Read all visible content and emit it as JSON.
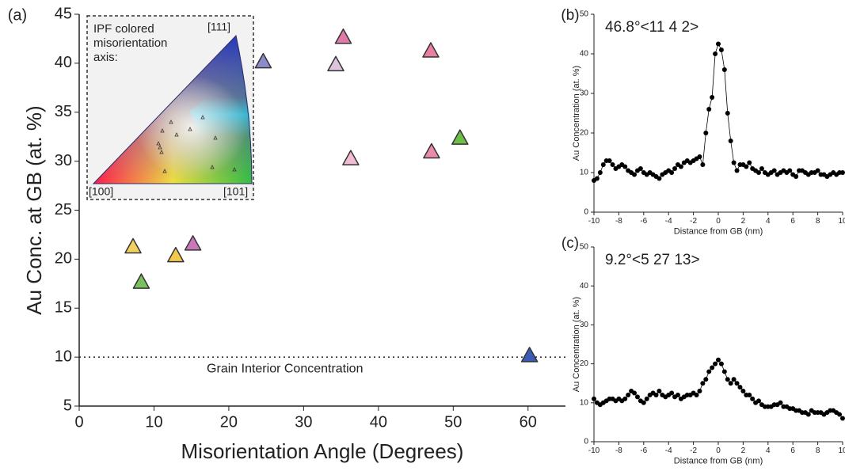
{
  "chart_data": [
    {
      "type": "scatter",
      "panel_label": "(a)",
      "xlabel": "Misorientation Angle (Degrees)",
      "ylabel": "Au Conc. at GB (at. %)",
      "x": [
        7.2,
        8.3,
        12.9,
        15.2,
        24.6,
        34.3,
        35.3,
        36.3,
        47.0,
        47.1,
        50.9,
        60.2
      ],
      "values": [
        21.2,
        17.6,
        20.3,
        21.5,
        40.1,
        39.8,
        42.6,
        30.2,
        41.2,
        30.9,
        32.3,
        10.1
      ],
      "colors": [
        "#f2d060",
        "#78c060",
        "#f2c850",
        "#c877b8",
        "#8c8ccc",
        "#dcc4dc",
        "#e07aa8",
        "#f2bcd4",
        "#e8809e",
        "#ea8aac",
        "#6cbf48",
        "#3a5cb4"
      ],
      "xlim": [
        0,
        65
      ],
      "xticks": [
        0,
        10,
        20,
        30,
        40,
        50,
        60
      ],
      "ylim": [
        5,
        45
      ],
      "yticks": [
        5,
        10,
        15,
        20,
        25,
        30,
        35,
        40,
        45
      ],
      "reference_line": {
        "value": 10,
        "label": "Grain Interior Concentration"
      },
      "inset": {
        "title": "IPF colored misorientation axis:",
        "corners": [
          "[111]",
          "[100]",
          "[101]"
        ]
      }
    },
    {
      "type": "line",
      "panel_label": "(b)",
      "annotation": "46.8°<11 4 2>",
      "xlabel": "Distance from GB (nm)",
      "ylabel": "Au Concentration (at. %)",
      "color": "#000000",
      "x": [
        -10,
        -9.75,
        -9.5,
        -9.25,
        -9,
        -8.75,
        -8.5,
        -8.25,
        -8,
        -7.75,
        -7.5,
        -7.25,
        -7,
        -6.75,
        -6.5,
        -6.25,
        -6,
        -5.75,
        -5.5,
        -5.25,
        -5,
        -4.75,
        -4.5,
        -4.25,
        -4,
        -3.75,
        -3.5,
        -3.25,
        -3,
        -2.75,
        -2.5,
        -2.25,
        -2,
        -1.75,
        -1.5,
        -1.25,
        -1,
        -0.75,
        -0.5,
        -0.25,
        0,
        0.25,
        0.5,
        0.75,
        1,
        1.25,
        1.5,
        1.75,
        2,
        2.25,
        2.5,
        2.75,
        3,
        3.25,
        3.5,
        3.75,
        4,
        4.25,
        4.5,
        4.75,
        5,
        5.25,
        5.5,
        5.75,
        6,
        6.25,
        6.5,
        6.75,
        7,
        7.25,
        7.5,
        7.75,
        8,
        8.25,
        8.5,
        8.75,
        9,
        9.25,
        9.5,
        9.75,
        10
      ],
      "values": [
        8,
        8.5,
        10,
        12,
        13,
        13,
        12,
        11,
        11.5,
        12,
        11.5,
        10.5,
        10,
        9.5,
        10.5,
        11,
        10,
        9.5,
        10,
        9.5,
        9,
        8.5,
        9.5,
        10,
        10.5,
        10,
        11,
        12,
        11.5,
        12.5,
        13,
        12.5,
        13,
        13.5,
        14,
        12,
        20,
        26,
        29,
        40,
        42.5,
        41,
        36,
        25,
        18,
        12.5,
        10.5,
        12,
        12,
        11.5,
        12.5,
        11,
        10.5,
        10,
        11,
        10,
        9.5,
        10,
        10.5,
        9.5,
        10,
        10.5,
        10,
        10.5,
        9.5,
        9,
        10.5,
        10.5,
        10,
        9.5,
        10,
        10,
        10.5,
        9.5,
        9.5,
        9,
        9.5,
        10,
        9.5,
        10,
        10
      ],
      "xlim": [
        -10,
        10
      ],
      "xticks": [
        -10,
        -8,
        -6,
        -4,
        -2,
        0,
        2,
        4,
        6,
        8,
        10
      ],
      "ylim": [
        0,
        50
      ],
      "yticks": [
        0,
        10,
        20,
        30,
        40,
        50
      ]
    },
    {
      "type": "line",
      "panel_label": "(c)",
      "annotation": "9.2°<5 27 13>",
      "xlabel": "Distance from GB (nm)",
      "ylabel": "Au Concentration (at. %)",
      "color": "#000000",
      "x": [
        -10,
        -9.75,
        -9.5,
        -9.25,
        -9,
        -8.75,
        -8.5,
        -8.25,
        -8,
        -7.75,
        -7.5,
        -7.25,
        -7,
        -6.75,
        -6.5,
        -6.25,
        -6,
        -5.75,
        -5.5,
        -5.25,
        -5,
        -4.75,
        -4.5,
        -4.25,
        -4,
        -3.75,
        -3.5,
        -3.25,
        -3,
        -2.75,
        -2.5,
        -2.25,
        -2,
        -1.75,
        -1.5,
        -1.25,
        -1,
        -0.75,
        -0.5,
        -0.25,
        0,
        0.25,
        0.5,
        0.75,
        1,
        1.25,
        1.5,
        1.75,
        2,
        2.25,
        2.5,
        2.75,
        3,
        3.25,
        3.5,
        3.75,
        4,
        4.25,
        4.5,
        4.75,
        5,
        5.25,
        5.5,
        5.75,
        6,
        6.25,
        6.5,
        6.75,
        7,
        7.25,
        7.5,
        7.75,
        8,
        8.25,
        8.5,
        8.75,
        9,
        9.25,
        9.5,
        9.75,
        10
      ],
      "values": [
        11,
        10,
        9.5,
        10,
        10.5,
        11,
        11,
        10.5,
        11,
        10.5,
        11,
        12,
        13,
        12.5,
        11.5,
        10.5,
        10,
        11,
        12,
        12.5,
        12,
        13,
        12,
        11.5,
        12,
        12.5,
        11.5,
        12,
        11,
        11.5,
        12,
        12,
        12.5,
        12,
        13,
        15,
        16,
        18,
        19,
        20,
        21,
        20,
        18,
        16,
        15,
        16,
        15,
        14,
        13,
        12,
        12,
        11,
        10,
        10.5,
        9.5,
        9,
        9,
        9,
        9.5,
        9.5,
        10,
        9,
        9,
        8.5,
        8.5,
        8,
        8,
        7.5,
        7.5,
        7,
        8,
        7.5,
        7.5,
        7.5,
        7,
        7.5,
        8,
        8,
        7.5,
        7,
        6
      ],
      "xlim": [
        -10,
        10
      ],
      "xticks": [
        -10,
        -8,
        -6,
        -4,
        -2,
        0,
        2,
        4,
        6,
        8,
        10
      ],
      "ylim": [
        0,
        50
      ],
      "yticks": [
        0,
        10,
        20,
        30,
        40,
        50
      ]
    }
  ]
}
